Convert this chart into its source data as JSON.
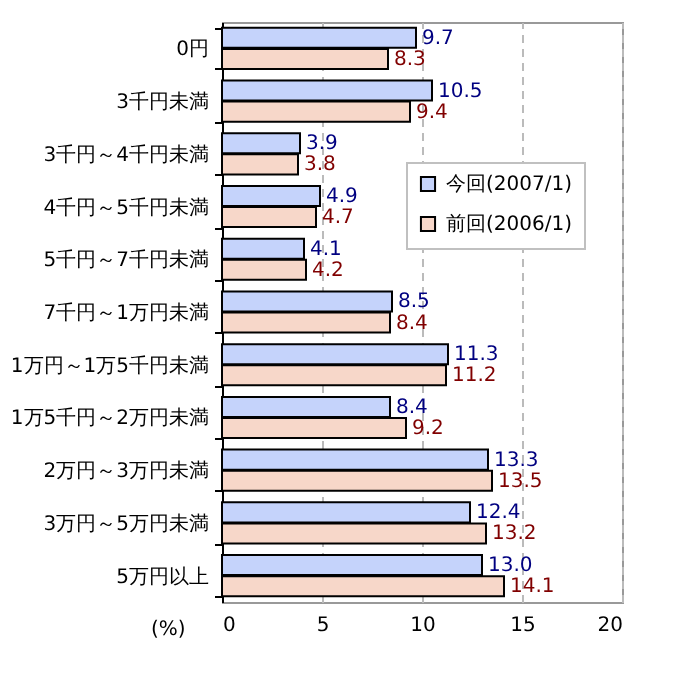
{
  "chart_data": {
    "type": "bar",
    "orientation": "horizontal",
    "xlabel": "(%)",
    "categories": [
      "0円",
      "3千円未満",
      "3千円～4千円未満",
      "4千円～5千円未満",
      "5千円～7千円未満",
      "7千円～1万円未満",
      "1万円～1万5千円未満",
      "1万5千円～2万円未満",
      "2万円～3万円未満",
      "3万円～5万円未満",
      "5万円以上"
    ],
    "series": [
      {
        "name": "今回(2007/1)",
        "color": "#c5d3fb",
        "values": [
          9.7,
          10.5,
          3.9,
          4.9,
          4.1,
          8.5,
          11.3,
          8.4,
          13.3,
          12.4,
          13.0
        ],
        "value_labels": [
          "9.7",
          "10.5",
          "3.9",
          "4.9",
          "4.1",
          "8.5",
          "11.3",
          "8.4",
          "13.3",
          "12.4",
          "13.0"
        ]
      },
      {
        "name": "前回(2006/1)",
        "color": "#f7d7c9",
        "values": [
          8.3,
          9.4,
          3.8,
          4.7,
          4.2,
          8.4,
          11.2,
          9.2,
          13.5,
          13.2,
          14.1
        ],
        "value_labels": [
          "8.3",
          "9.4",
          "3.8",
          "4.7",
          "4.2",
          "8.4",
          "11.2",
          "9.2",
          "13.5",
          "13.2",
          "14.1"
        ]
      }
    ],
    "xlim": [
      0,
      20
    ],
    "xticks": [
      0,
      5,
      10,
      15,
      20
    ],
    "grid": "x",
    "legend": "top right"
  }
}
